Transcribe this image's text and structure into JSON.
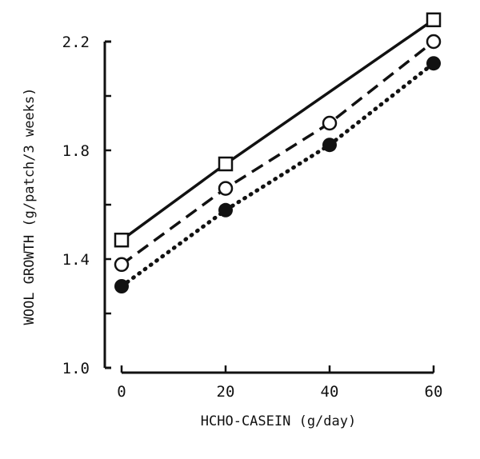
{
  "chart_data": {
    "type": "line",
    "title": "",
    "xlabel": "HCHO-CASEIN (g/day)",
    "ylabel": "WOOL GROWTH (g/patch/3 weeks)",
    "x_ticks": [
      "0",
      "20",
      "40",
      "60"
    ],
    "y_ticks": [
      "1.0",
      "1.4",
      "1.8",
      "2.2"
    ],
    "xlim": [
      0,
      60
    ],
    "ylim": [
      1.0,
      2.2
    ],
    "grid": false,
    "legend": "none",
    "series": [
      {
        "name": "open-square",
        "marker": "open square",
        "line_style": "solid",
        "x": [
          0,
          20,
          60
        ],
        "y": [
          1.47,
          1.75,
          2.28
        ]
      },
      {
        "name": "open-circle",
        "marker": "open circle",
        "line_style": "dashed",
        "x": [
          0,
          20,
          40,
          60
        ],
        "y": [
          1.38,
          1.66,
          1.9,
          2.2
        ]
      },
      {
        "name": "filled-circle",
        "marker": "filled circle",
        "line_style": "dotted",
        "x": [
          0,
          20,
          40,
          60
        ],
        "y": [
          1.3,
          1.58,
          1.82,
          2.12
        ]
      }
    ]
  }
}
